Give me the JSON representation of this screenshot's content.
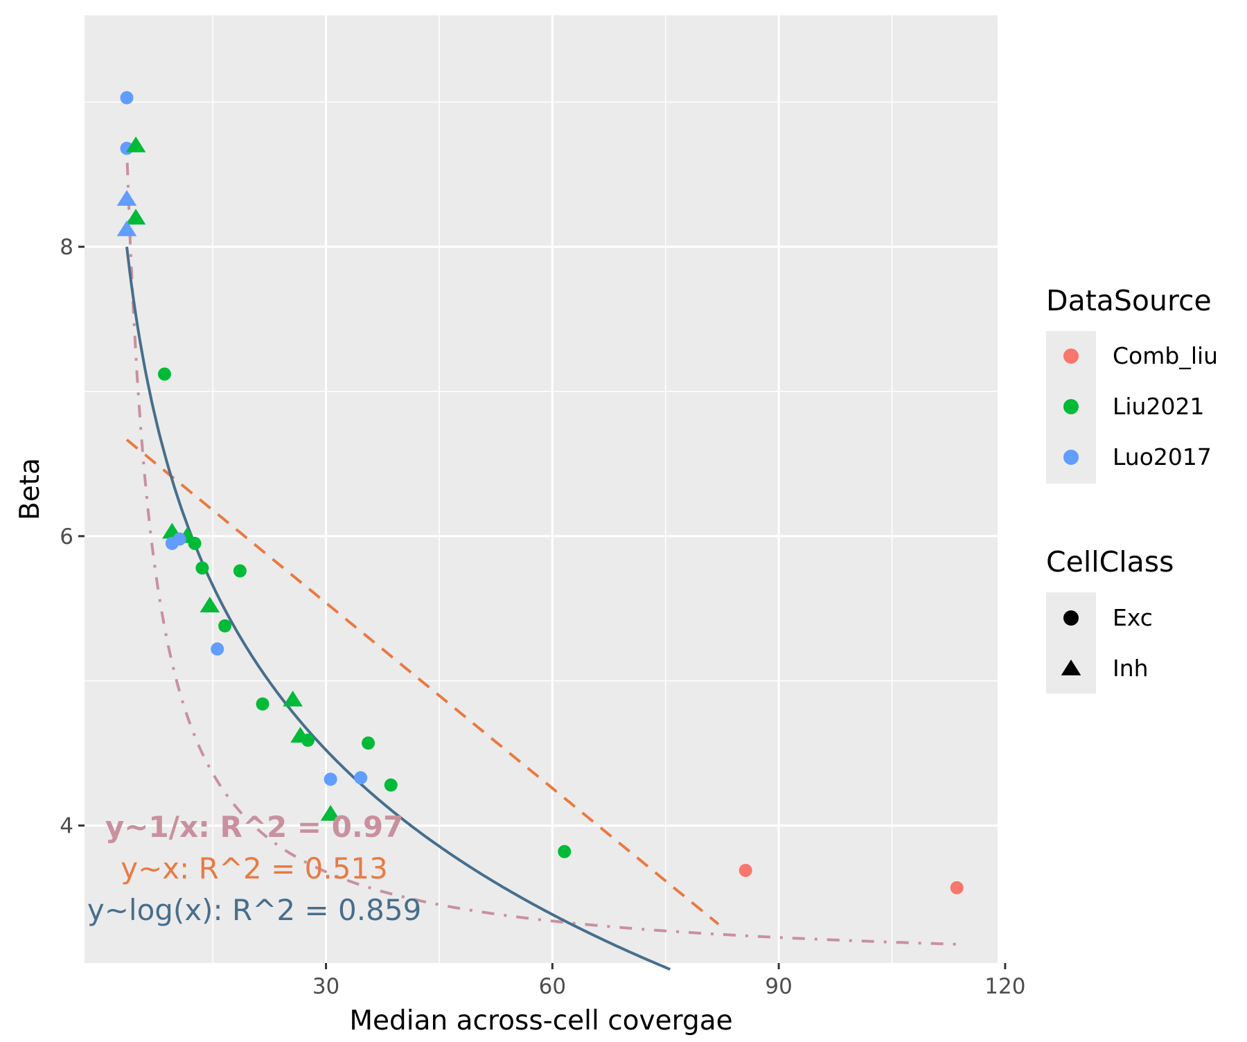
{
  "chart_data": {
    "type": "scatter",
    "title": "",
    "xlabel": "Median across-cell covergae",
    "ylabel": "Beta",
    "xlim": [
      -2,
      119
    ],
    "ylim": [
      3.05,
      9.6
    ],
    "x_ticks": [
      30,
      60,
      90,
      120
    ],
    "y_ticks": [
      4,
      6,
      8
    ],
    "grid": true,
    "panel_background": "#EBEBEB",
    "legend_position": "right",
    "legends": [
      {
        "title": "DataSource",
        "entries": [
          {
            "label": "Comb_liu",
            "color": "#F8766D"
          },
          {
            "label": "Liu2021",
            "color": "#00BA38"
          },
          {
            "label": "Luo2017",
            "color": "#619CFF"
          }
        ]
      },
      {
        "title": "CellClass",
        "entries": [
          {
            "label": "Exc",
            "shape": "circle"
          },
          {
            "label": "Inh",
            "shape": "triangle"
          }
        ]
      }
    ],
    "points": [
      {
        "x": 3.6,
        "y": 9.03,
        "source": "Luo2017",
        "class": "Exc"
      },
      {
        "x": 3.6,
        "y": 8.68,
        "source": "Luo2017",
        "class": "Exc"
      },
      {
        "x": 4.8,
        "y": 8.7,
        "source": "Liu2021",
        "class": "Inh"
      },
      {
        "x": 3.6,
        "y": 8.33,
        "source": "Luo2017",
        "class": "Inh"
      },
      {
        "x": 4.8,
        "y": 8.2,
        "source": "Liu2021",
        "class": "Inh"
      },
      {
        "x": 3.6,
        "y": 8.12,
        "source": "Luo2017",
        "class": "Inh"
      },
      {
        "x": 8.6,
        "y": 7.12,
        "source": "Liu2021",
        "class": "Exc"
      },
      {
        "x": 9.6,
        "y": 6.03,
        "source": "Liu2021",
        "class": "Inh"
      },
      {
        "x": 11.6,
        "y": 6.0,
        "source": "Liu2021",
        "class": "Inh"
      },
      {
        "x": 12.6,
        "y": 5.95,
        "source": "Liu2021",
        "class": "Exc"
      },
      {
        "x": 9.6,
        "y": 5.95,
        "source": "Luo2017",
        "class": "Exc"
      },
      {
        "x": 10.6,
        "y": 5.98,
        "source": "Luo2017",
        "class": "Exc"
      },
      {
        "x": 13.6,
        "y": 5.78,
        "source": "Liu2021",
        "class": "Exc"
      },
      {
        "x": 18.6,
        "y": 5.76,
        "source": "Liu2021",
        "class": "Exc"
      },
      {
        "x": 14.6,
        "y": 5.52,
        "source": "Liu2021",
        "class": "Inh"
      },
      {
        "x": 16.6,
        "y": 5.38,
        "source": "Liu2021",
        "class": "Exc"
      },
      {
        "x": 15.6,
        "y": 5.22,
        "source": "Luo2017",
        "class": "Exc"
      },
      {
        "x": 21.6,
        "y": 4.84,
        "source": "Liu2021",
        "class": "Exc"
      },
      {
        "x": 25.6,
        "y": 4.87,
        "source": "Liu2021",
        "class": "Inh"
      },
      {
        "x": 26.6,
        "y": 4.62,
        "source": "Liu2021",
        "class": "Inh"
      },
      {
        "x": 27.6,
        "y": 4.59,
        "source": "Liu2021",
        "class": "Exc"
      },
      {
        "x": 35.6,
        "y": 4.57,
        "source": "Liu2021",
        "class": "Exc"
      },
      {
        "x": 30.6,
        "y": 4.32,
        "source": "Luo2017",
        "class": "Exc"
      },
      {
        "x": 34.6,
        "y": 4.33,
        "source": "Luo2017",
        "class": "Exc"
      },
      {
        "x": 38.6,
        "y": 4.28,
        "source": "Liu2021",
        "class": "Exc"
      },
      {
        "x": 30.6,
        "y": 4.08,
        "source": "Liu2021",
        "class": "Inh"
      },
      {
        "x": 61.6,
        "y": 3.82,
        "source": "Liu2021",
        "class": "Exc"
      },
      {
        "x": 85.6,
        "y": 3.69,
        "source": "Comb_liu",
        "class": "Exc"
      },
      {
        "x": 113.6,
        "y": 3.57,
        "source": "Comb_liu",
        "class": "Exc"
      }
    ],
    "fits": [
      {
        "formula": "y~1/x",
        "style": "dotdash",
        "color": "#C9909E",
        "a": 3.0,
        "b": 20.4,
        "xrange": [
          3.6,
          113.6
        ]
      },
      {
        "formula": "y~x",
        "style": "dashed",
        "color": "#E87A42",
        "a": 6.82,
        "b": -0.0427,
        "xrange": [
          3.6,
          82
        ]
      },
      {
        "formula": "y~log(x)",
        "style": "solid",
        "color": "#476E8C",
        "a": 10.1,
        "b": -1.64,
        "xrange": [
          3.6,
          75.6
        ]
      }
    ],
    "annotations": [
      {
        "text": "y~1/x: R^2 = 0.97",
        "color": "#C9909E",
        "bold": true
      },
      {
        "text": "y~x: R^2 = 0.513",
        "color": "#E87A42",
        "bold": false
      },
      {
        "text": "y~log(x): R^2 = 0.859",
        "color": "#476E8C",
        "bold": false
      }
    ]
  }
}
